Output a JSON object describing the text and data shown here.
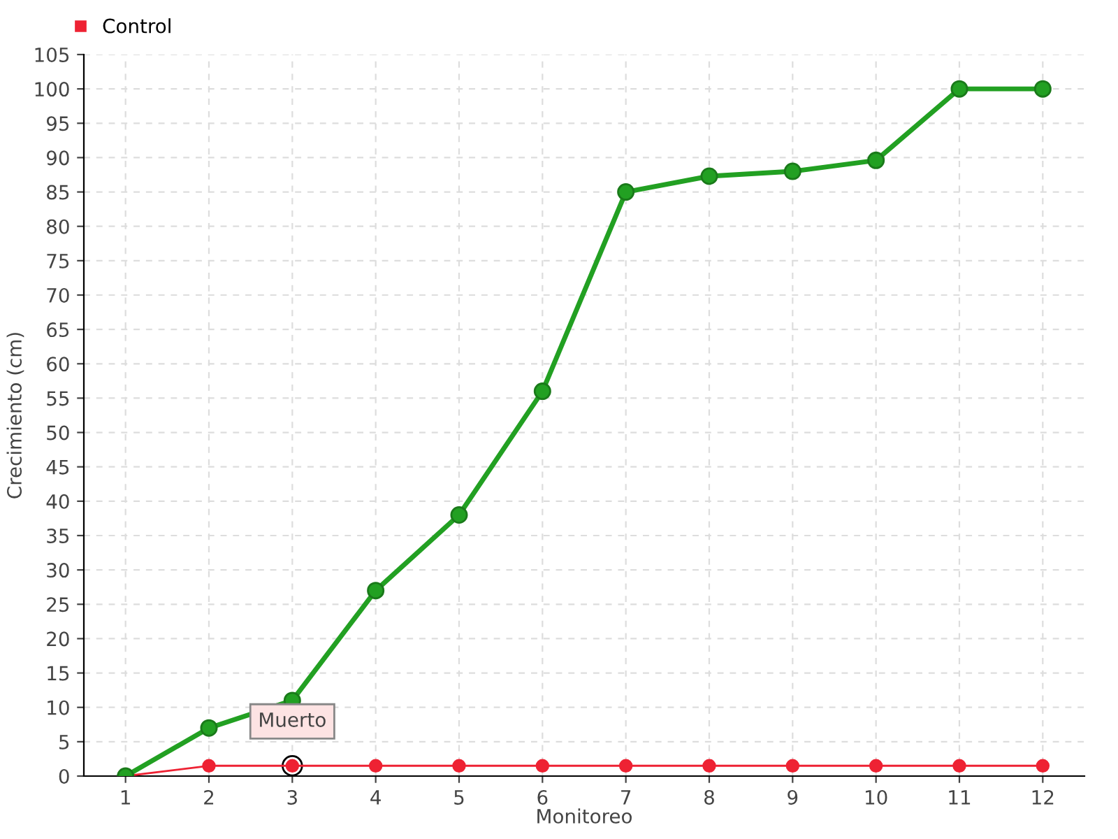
{
  "chart_data": {
    "type": "line",
    "xlabel": "Monitoreo",
    "ylabel": "Crecimiento (cm)",
    "categories": [
      "1",
      "2",
      "3",
      "4",
      "5",
      "6",
      "7",
      "8",
      "9",
      "10",
      "11",
      "12"
    ],
    "series": [
      {
        "color": "#22a022",
        "values": [
          0,
          7,
          11,
          27,
          38,
          56,
          85,
          87.3,
          88,
          89.6,
          100,
          100
        ]
      },
      {
        "name": "Control",
        "color": "#ee2233",
        "values": [
          0,
          1.5,
          1.5,
          1.5,
          1.5,
          1.5,
          1.5,
          1.5,
          1.5,
          1.5,
          1.5,
          1.5
        ]
      }
    ],
    "annotations": [
      {
        "text": "Muerto",
        "x": "3",
        "y": 1.5
      }
    ],
    "ylim": [
      0,
      105
    ],
    "yticks": [
      0,
      5,
      10,
      15,
      20,
      25,
      30,
      35,
      40,
      45,
      50,
      55,
      60,
      65,
      70,
      75,
      80,
      85,
      90,
      95,
      100,
      105
    ],
    "grid": true,
    "legend": "top left",
    "marker": "circle",
    "line_style": "solid"
  }
}
